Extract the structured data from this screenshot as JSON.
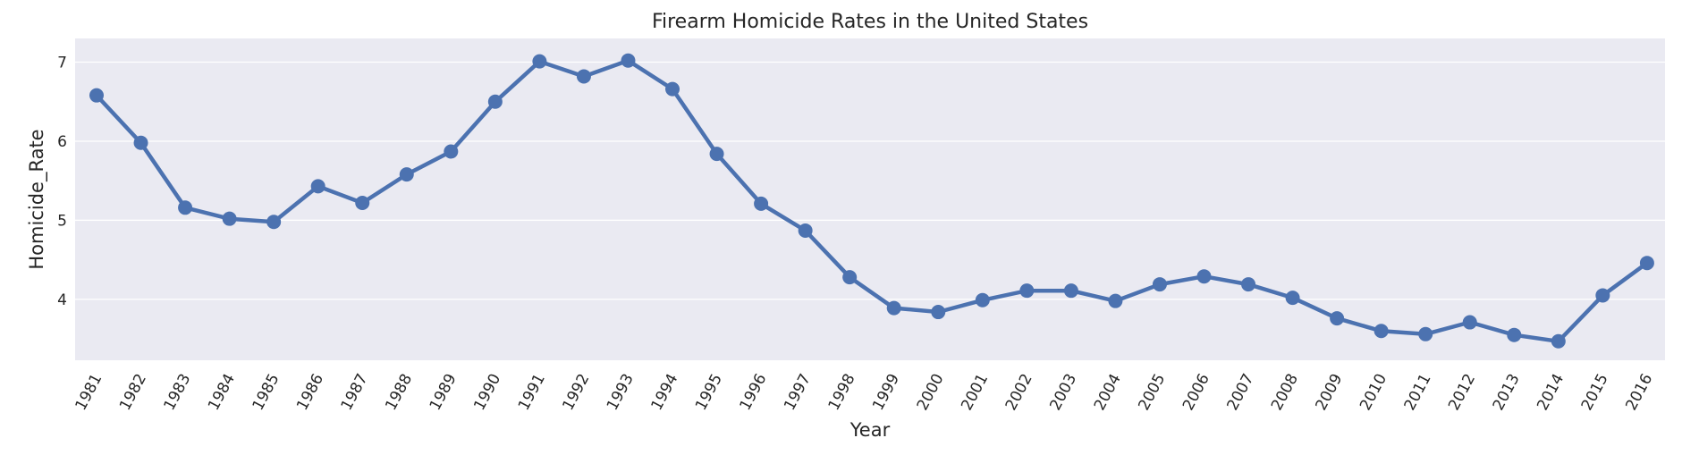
{
  "chart_data": {
    "type": "line",
    "title": "Firearm Homicide Rates in the United States",
    "xlabel": "Year",
    "ylabel": "Homicide_Rate",
    "categories": [
      "1981",
      "1982",
      "1983",
      "1984",
      "1985",
      "1986",
      "1987",
      "1988",
      "1989",
      "1990",
      "1991",
      "1992",
      "1993",
      "1994",
      "1995",
      "1996",
      "1997",
      "1998",
      "1999",
      "2000",
      "2001",
      "2002",
      "2003",
      "2004",
      "2005",
      "2006",
      "2007",
      "2008",
      "2009",
      "2010",
      "2011",
      "2012",
      "2013",
      "2014",
      "2015",
      "2016"
    ],
    "values": [
      6.58,
      5.98,
      5.16,
      5.02,
      4.98,
      5.43,
      5.22,
      5.58,
      5.87,
      6.5,
      7.01,
      6.82,
      7.02,
      6.66,
      5.84,
      5.21,
      4.87,
      4.28,
      3.89,
      3.84,
      3.99,
      4.11,
      4.11,
      3.98,
      4.19,
      4.29,
      4.19,
      4.02,
      3.76,
      3.6,
      3.56,
      3.71,
      3.55,
      3.47,
      4.05,
      4.46
    ],
    "ylim": [
      3.23,
      7.3
    ],
    "yticks": [
      "4",
      "5",
      "6",
      "7"
    ],
    "grid": true,
    "color": "#4c72b0",
    "background": "#eaeaf2"
  }
}
